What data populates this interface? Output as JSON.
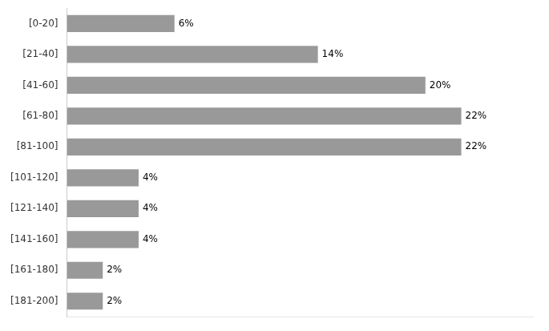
{
  "chart_data": {
    "type": "bar",
    "orientation": "horizontal",
    "categories": [
      "[0-20]",
      "[21-40]",
      "[41-60]",
      "[61-80]",
      "[81-100]",
      "[101-120]",
      "[121-140]",
      "[141-160]",
      "[161-180]",
      "[181-200]"
    ],
    "values": [
      6,
      14,
      20,
      22,
      22,
      4,
      4,
      4,
      2,
      2
    ],
    "value_labels": [
      "6%",
      "14%",
      "20%",
      "22%",
      "22%",
      "4%",
      "4%",
      "4%",
      "2%",
      "2%"
    ],
    "data_labels": true,
    "color": "#999999",
    "xlim": [
      0,
      26
    ],
    "grid": false,
    "tick_labels": "y"
  }
}
